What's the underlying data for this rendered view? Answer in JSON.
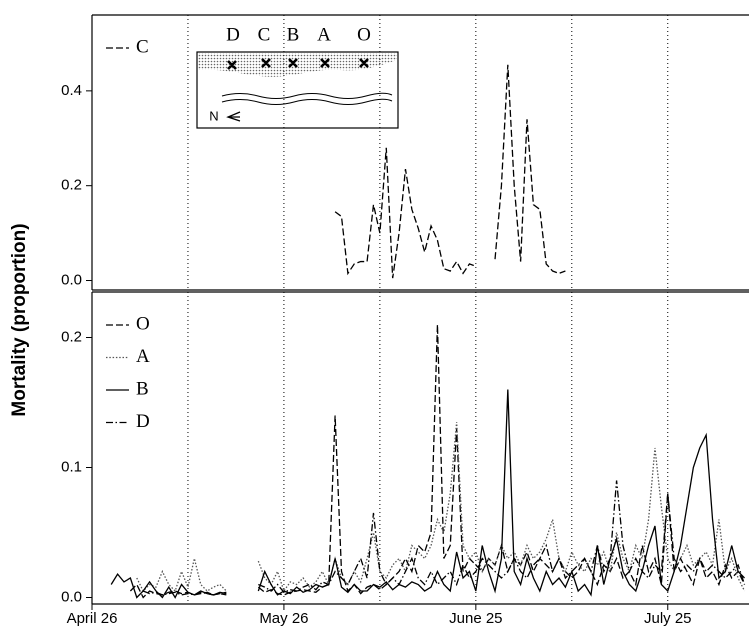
{
  "chart_data": [
    {
      "type": "line",
      "ylabel": "Mortality (proportion)",
      "legend": "upper left",
      "xlim": [
        0,
        102.7
      ],
      "ylim": [
        -0.02,
        0.56
      ],
      "yticks": [
        {
          "value": 0,
          "label": "0.0"
        },
        0.2,
        0.4
      ],
      "xgrid": [
        15,
        30,
        45,
        60,
        75,
        90
      ],
      "inset_labels": [
        "D",
        "C",
        "B",
        "A",
        "O"
      ],
      "inset_north": "N",
      "x": [
        38,
        39,
        40,
        41,
        42,
        43,
        44,
        45,
        46,
        47,
        48,
        49,
        50,
        51,
        52,
        53,
        54,
        55,
        56,
        57,
        58,
        59,
        60,
        61,
        62,
        63,
        64,
        65,
        66,
        67,
        68,
        69,
        70,
        71,
        72,
        73,
        74
      ],
      "series": [
        {
          "name": "C",
          "color": "#000000",
          "style": "dashed",
          "values": [
            0.145,
            0.135,
            0.015,
            0.035,
            0.04,
            0.04,
            0.16,
            0.1,
            0.28,
            0.005,
            0.1,
            0.235,
            0.15,
            0.11,
            0.06,
            0.115,
            0.085,
            0.025,
            0.02,
            0.04,
            0.015,
            0.035,
            0.03,
            null,
            null,
            0.045,
            0.2,
            0.455,
            0.2,
            0.04,
            0.34,
            0.16,
            0.15,
            0.035,
            0.02,
            0.015,
            0.02
          ]
        }
      ]
    },
    {
      "type": "line",
      "legend": "upper left",
      "xlim": [
        0,
        102.7
      ],
      "ylim": [
        -0.005,
        0.235
      ],
      "yticks": [
        {
          "value": 0,
          "label": "0.0"
        },
        0.1,
        0.2
      ],
      "xgrid": [
        15,
        30,
        45,
        60,
        75,
        90
      ],
      "xticks": [
        {
          "value": 0,
          "label": "April 26"
        },
        {
          "value": 30,
          "label": "May 26"
        },
        {
          "value": 60,
          "label": "June 25"
        },
        {
          "value": 90,
          "label": "July 25"
        }
      ],
      "x": [
        3,
        4,
        5,
        6,
        7,
        8,
        9,
        10,
        11,
        12,
        13,
        14,
        15,
        16,
        17,
        18,
        19,
        20,
        21,
        22,
        23,
        24,
        25,
        26,
        27,
        28,
        29,
        30,
        31,
        32,
        33,
        34,
        35,
        36,
        37,
        38,
        39,
        40,
        41,
        42,
        43,
        44,
        45,
        46,
        47,
        48,
        49,
        50,
        51,
        52,
        53,
        54,
        55,
        56,
        57,
        58,
        59,
        60,
        61,
        62,
        63,
        64,
        65,
        66,
        67,
        68,
        69,
        70,
        71,
        72,
        73,
        74,
        75,
        76,
        77,
        78,
        79,
        80,
        81,
        82,
        83,
        84,
        85,
        86,
        87,
        88,
        89,
        90,
        91,
        92,
        93,
        94,
        95,
        96,
        97,
        98,
        99,
        100,
        101,
        102
      ],
      "series": [
        {
          "name": "O",
          "color": "#000000",
          "style": "dashed",
          "values": [
            null,
            null,
            null,
            0.005,
            0.01,
            0,
            0.005,
            0.003,
            0.002,
            0.004,
            0.005,
            0.003,
            0.004,
            0.002,
            0.003,
            0.004,
            0.002,
            0.003,
            0.004,
            null,
            null,
            null,
            null,
            0.008,
            0.004,
            0.006,
            0.003,
            0.002,
            0.004,
            0.005,
            0.006,
            0.005,
            0.004,
            0.008,
            0.01,
            0.14,
            0.02,
            0.005,
            0.01,
            0.003,
            0.008,
            0.01,
            0.006,
            0.01,
            0.015,
            0.02,
            0.03,
            0.02,
            0.04,
            0.035,
            0.05,
            0.21,
            0.03,
            0.04,
            0.13,
            0.02,
            0.03,
            0.025,
            0.02,
            0.03,
            0.025,
            0.04,
            0.02,
            0.03,
            0.025,
            0.035,
            0.02,
            0.03,
            0.025,
            0.02,
            0.03,
            0.02,
            0.015,
            0.02,
            0.03,
            0.02,
            0.01,
            0.025,
            0.02,
            0.03,
            0.015,
            0.02,
            0.01,
            0.04,
            0.02,
            0.03,
            0.01,
            0.08,
            0.02,
            0.03,
            0.02,
            0.01,
            0.03,
            0.015,
            0.02,
            0.01,
            0.025,
            0.015,
            0.02,
            0.01
          ]
        },
        {
          "name": "A",
          "color": "#555555",
          "style": "dotted",
          "values": [
            null,
            null,
            null,
            null,
            0.015,
            0.005,
            0.01,
            0.008,
            0.02,
            0.01,
            0.005,
            0.02,
            0.008,
            0.03,
            0.01,
            0.005,
            0.008,
            0.01,
            0.005,
            null,
            null,
            null,
            null,
            0.028,
            0.015,
            0.01,
            0.02,
            0.005,
            0.012,
            0.01,
            0.015,
            0.008,
            0.012,
            0.02,
            0.01,
            0.03,
            0.015,
            0.01,
            0.02,
            0.012,
            0.03,
            0.05,
            0.02,
            0.015,
            0.025,
            0.03,
            0.02,
            0.04,
            0.035,
            0.03,
            0.04,
            0.06,
            0.05,
            0.08,
            0.135,
            0.04,
            0.03,
            0.035,
            0.02,
            0.03,
            0.025,
            0.04,
            0.03,
            0.035,
            0.025,
            0.04,
            0.03,
            0.035,
            0.045,
            0.06,
            0.03,
            0.02,
            0.035,
            0.025,
            0.02,
            0.03,
            0.025,
            0.035,
            0.02,
            0.05,
            0.03,
            0.02,
            0.04,
            0.03,
            0.06,
            0.115,
            0.07,
            0.03,
            0.02,
            0.03,
            0.04,
            0.025,
            0.03,
            0.035,
            0.025,
            0.06,
            0.02,
            0.03,
            0.015,
            0.005
          ]
        },
        {
          "name": "B",
          "color": "#000000",
          "style": "solid",
          "values": [
            0.01,
            0.018,
            0.012,
            0.015,
            0,
            0.005,
            0.012,
            0.005,
            0,
            0.008,
            0,
            0.01,
            0.004,
            0.002,
            0.005,
            0.003,
            0.002,
            0.004,
            0.003,
            null,
            null,
            null,
            null,
            0.005,
            0.02,
            0.01,
            0.002,
            0.005,
            0.003,
            0.008,
            0.004,
            0.006,
            0.01,
            0.008,
            0.01,
            0.03,
            0.008,
            0.004,
            0.01,
            0.005,
            0.005,
            0.01,
            0.008,
            0.012,
            0.006,
            0.01,
            0.008,
            0.012,
            0.01,
            0.005,
            0.008,
            0.02,
            0.01,
            0.005,
            0.035,
            0.015,
            0.02,
            0.005,
            0.04,
            0.02,
            0.005,
            0.03,
            0.16,
            0.02,
            0.01,
            0.03,
            0.015,
            0.005,
            0.02,
            0.01,
            0.015,
            0.008,
            0.02,
            0.005,
            0.01,
            0.002,
            0.04,
            0.01,
            0.03,
            0.045,
            0.02,
            0.01,
            0.005,
            0.02,
            0.04,
            0.055,
            0.01,
            0.005,
            0.02,
            0.04,
            0.07,
            0.1,
            0.115,
            0.125,
            0.06,
            0.015,
            0.02,
            0.04,
            0.02,
            0.015
          ]
        },
        {
          "name": "D",
          "color": "#000000",
          "style": "dashdot",
          "values": [
            null,
            null,
            null,
            null,
            null,
            0.005,
            0.003,
            0.004,
            0.002,
            0.003,
            0.004,
            0.002,
            0.003,
            0.002,
            0.004,
            0.003,
            0.002,
            0.003,
            0.002,
            null,
            null,
            null,
            null,
            0.01,
            0.008,
            0.005,
            0.01,
            0.004,
            0.006,
            0.005,
            0.008,
            0.01,
            0.006,
            0.012,
            0.01,
            0.02,
            0.015,
            0.01,
            0.02,
            0.03,
            0.015,
            0.065,
            0.02,
            0.01,
            0.015,
            0.01,
            0.02,
            0.03,
            0.015,
            0.01,
            0.02,
            0.01,
            0.015,
            0.02,
            0.01,
            0.025,
            0.015,
            0.02,
            0.03,
            0.025,
            0.02,
            0.015,
            0.02,
            0.03,
            0.02,
            0.015,
            0.025,
            0.03,
            0.04,
            0.02,
            0.03,
            0.015,
            0.02,
            0.025,
            0.03,
            0.02,
            0.04,
            0.02,
            0.03,
            0.09,
            0.04,
            0.02,
            0.03,
            0.02,
            0.015,
            0.025,
            0.02,
            0.08,
            0.03,
            0.02,
            0.025,
            0.02,
            0.03,
            0.02,
            0.025,
            0.02,
            0.015,
            0.02,
            0.025,
            0.01
          ]
        }
      ]
    }
  ]
}
